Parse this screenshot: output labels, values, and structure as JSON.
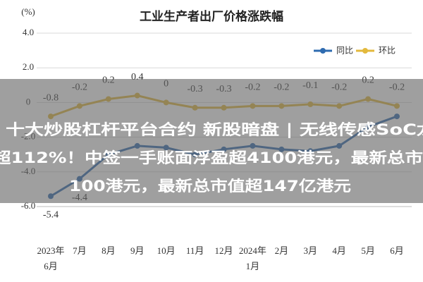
{
  "chart_data": {
    "type": "line",
    "title": "工业生产者出厂价格涨跌幅",
    "y_label": "(%)",
    "categories": [
      "2023年\n6月",
      "7月",
      "8月",
      "9月",
      "10月",
      "11月",
      "12月",
      "2024年\n1月",
      "2月",
      "3月",
      "4月",
      "5月",
      "6月"
    ],
    "series": [
      {
        "name": "同比",
        "color": "#2e6bb0",
        "values": [
          -5.4,
          -4.4,
          -3.0,
          -2.5,
          -2.6,
          -3.0,
          -2.7,
          -2.5,
          -2.7,
          -2.8,
          -2.5,
          -1.4,
          -0.8
        ],
        "value_labels": [
          "-5.4",
          "-4.4",
          null,
          null,
          null,
          null,
          null,
          null,
          null,
          null,
          null,
          null,
          null
        ]
      },
      {
        "name": "环比",
        "color": "#e3b93c",
        "values": [
          -0.8,
          -0.2,
          0.2,
          0.4,
          0,
          -0.3,
          -0.3,
          -0.2,
          -0.2,
          -0.1,
          -0.2,
          0.2,
          -0.2
        ]
      }
    ],
    "ylim": [
      -6,
      4
    ],
    "yticks": [
      {
        "value": -6,
        "label": "-6.0"
      },
      {
        "value": -4,
        "label": "-4.0"
      },
      {
        "value": -2,
        "label": "-2.0"
      },
      0,
      {
        "value": 2,
        "label": "2.0"
      },
      {
        "value": 4,
        "label": "4.0"
      }
    ],
    "grid": true,
    "legend": "top-right"
  },
  "overlay": {
    "lines": [
      "十大炒股杠杆平台合约 新股暗盘 | 无线传感SoC龙",
      "超112%！中签一手账面浮盈超4100港元，最新总市",
      "100港元，最新总市值超147亿港元"
    ]
  }
}
